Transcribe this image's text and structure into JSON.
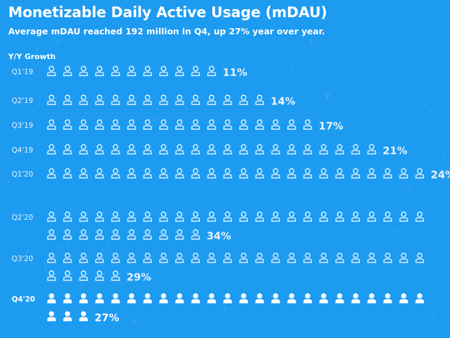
{
  "header": {
    "title": "Monetizable Daily Active Usage (mDAU)",
    "subtitle": "Average mDAU reached 192 million in Q4, up 27% year over year."
  },
  "chart_data": {
    "type": "pictograph",
    "ylabel": "Y/Y Growth",
    "icon": "person-icon",
    "icons_per_line": 24,
    "highlight_category": "Q4'20",
    "categories": [
      "Q1'19",
      "Q2'19",
      "Q3'19",
      "Q4'19",
      "Q1'20",
      "Q2'20",
      "Q3'20",
      "Q4'20"
    ],
    "series": [
      {
        "values": [
          11,
          14,
          17,
          21,
          24,
          34,
          29,
          27
        ],
        "labels": [
          "11%",
          "14%",
          "17%",
          "21%",
          "24%",
          "34%",
          "29%",
          "27%"
        ]
      }
    ],
    "colors": {
      "background": "#1d9bf0",
      "icon_outline": "#e6f3fd",
      "icon_highlight": "#ffffff"
    }
  }
}
